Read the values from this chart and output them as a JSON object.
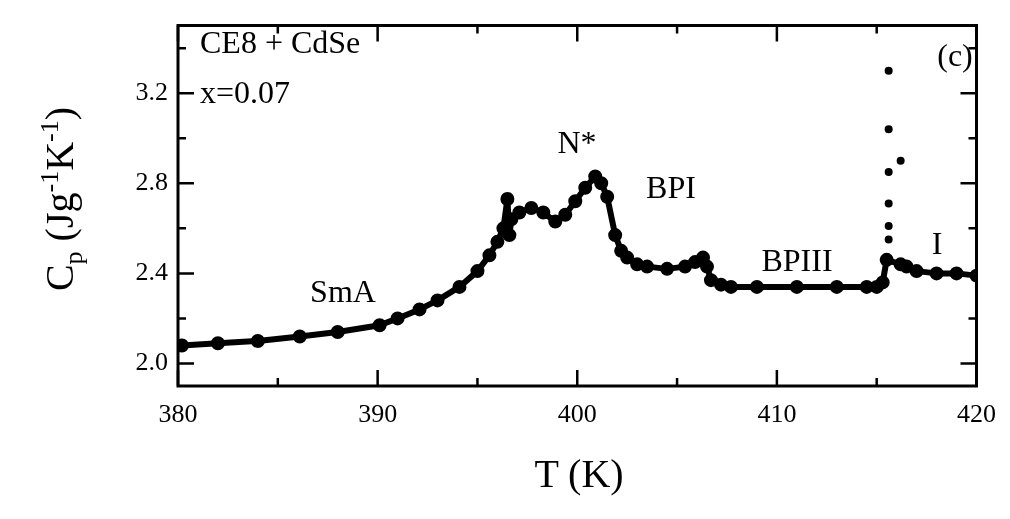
{
  "chart_data": {
    "type": "line",
    "xlabel": "T (K)",
    "ylabel": "C$_{p}$ (Jg$^{-1}$K$^{-1}$)",
    "xlim": [
      380,
      420
    ],
    "ylim": [
      1.9,
      3.5
    ],
    "xticks": [
      380,
      {
        "value": 385,
        "label": null
      },
      390,
      {
        "value": 395,
        "label": null
      },
      400,
      {
        "value": 405,
        "label": null
      },
      410,
      {
        "value": 415,
        "label": null
      },
      420
    ],
    "yticks": [
      {
        "value": 2,
        "label": "2.0"
      },
      {
        "value": 2.2,
        "label": null
      },
      2.4,
      {
        "value": 2.6,
        "label": null
      },
      2.8,
      {
        "value": 3,
        "label": null
      },
      3.2,
      {
        "value": 3.4,
        "label": null
      }
    ],
    "marker": "circle",
    "series": [
      {
        "color": "#000000",
        "x": [
          380.2,
          382,
          384,
          386.1,
          388,
          390.1,
          391,
          392.1,
          393,
          394.1,
          395,
          395.6,
          396,
          396.3,
          396.5,
          396.6,
          396.7,
          397.1,
          397.7,
          398.3,
          398.9,
          399.4,
          399.9,
          400.4,
          400.9,
          401.2,
          401.5,
          401.9,
          402.2,
          402.5,
          403,
          403.5,
          404.5,
          405.4,
          405.9,
          406.3,
          406.5,
          406.7,
          407.2,
          407.7,
          409,
          411,
          413,
          414.5,
          415,
          415.3,
          415.5,
          416.2,
          416.5,
          417,
          418,
          419,
          420
        ],
        "values": [
          2.08,
          2.09,
          2.1,
          2.12,
          2.14,
          2.17,
          2.2,
          2.24,
          2.28,
          2.34,
          2.41,
          2.48,
          2.54,
          2.6,
          2.73,
          2.57,
          2.64,
          2.67,
          2.69,
          2.67,
          2.63,
          2.66,
          2.72,
          2.78,
          2.83,
          2.8,
          2.74,
          2.57,
          2.5,
          2.47,
          2.44,
          2.43,
          2.42,
          2.43,
          2.45,
          2.47,
          2.43,
          2.37,
          2.35,
          2.34,
          2.34,
          2.34,
          2.34,
          2.34,
          2.34,
          2.36,
          2.46,
          2.44,
          2.43,
          2.41,
          2.4,
          2.4,
          2.39
        ]
      },
      {
        "type": "scatter",
        "color": "#000000",
        "x": [
          415.6,
          415.6,
          415.6,
          415.6,
          415.6,
          415.6,
          416.2
        ],
        "values": [
          2.55,
          2.61,
          2.71,
          2.85,
          3.04,
          3.3,
          2.9
        ]
      }
    ],
    "annotations": [
      "CE8 + CdSe",
      "x=0.07",
      "(c)",
      "SmA",
      "N*",
      "BPI",
      "BPIII",
      "I"
    ]
  }
}
